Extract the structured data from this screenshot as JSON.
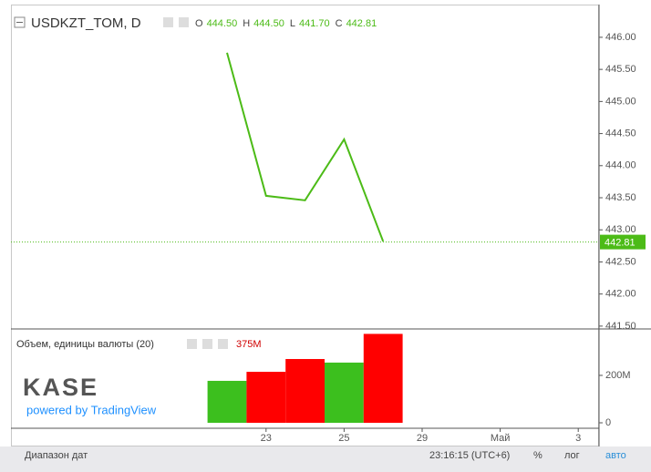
{
  "chart_data": [
    {
      "type": "line",
      "title": "USDKZT_TOM, D",
      "ohlc": [
        {
          "label": "O",
          "value": "444.50"
        },
        {
          "label": "H",
          "value": "444.50"
        },
        {
          "label": "L",
          "value": "441.70"
        },
        {
          "label": "C",
          "value": "442.81"
        }
      ],
      "categories": [
        null,
        "23",
        null,
        "25",
        null,
        "29",
        null,
        "Май",
        null,
        "3"
      ],
      "values": [
        445.76,
        443.53,
        443.46,
        444.41,
        442.82,
        null,
        null,
        null,
        null,
        null
      ],
      "color": "#4cbb17",
      "ylim": [
        441.47,
        446.51
      ],
      "yticks": [
        {
          "value": 446,
          "label": "446.00"
        },
        {
          "value": 445.5,
          "label": "445.50"
        },
        {
          "value": 445,
          "label": "445.00"
        },
        {
          "value": 444.5,
          "label": "444.50"
        },
        {
          "value": 444,
          "label": "444.00"
        },
        {
          "value": 443.5,
          "label": "443.50"
        },
        {
          "value": 443,
          "label": "443.00"
        },
        {
          "value": 442.5,
          "label": "442.50"
        },
        {
          "value": 442,
          "label": "442.00"
        },
        {
          "value": 441.5,
          "label": "441.50"
        }
      ],
      "last_price": {
        "value": 442.81,
        "label": "442.81"
      },
      "grid": false
    },
    {
      "type": "bar",
      "title": "Объем, единицы валюты (20)",
      "categories": [
        null,
        "23",
        null,
        "25",
        null,
        "29",
        null,
        "Май",
        null,
        "3"
      ],
      "values": [
        177,
        215,
        269,
        254,
        375,
        null,
        null,
        null,
        null,
        null
      ],
      "value_labels": [
        null,
        null,
        null,
        null,
        "375M",
        null,
        null,
        null,
        null,
        null
      ],
      "colors": [
        "#3cbf1e",
        "#ff0000",
        "#ff0000",
        "#3cbf1e",
        "#ff0000",
        null,
        null,
        null,
        null,
        null
      ],
      "ylim": [
        -23,
        392
      ],
      "yticks": [
        {
          "value": 200,
          "label": "200M"
        },
        0
      ]
    }
  ],
  "logo": {
    "name": "KASE",
    "tagline": "powered by TradingView"
  },
  "toolbar": {
    "range": "Диапазон дат",
    "time": "23:16:15 (UTC+6)",
    "percent": "%",
    "log": "лог",
    "auto": "авто"
  }
}
